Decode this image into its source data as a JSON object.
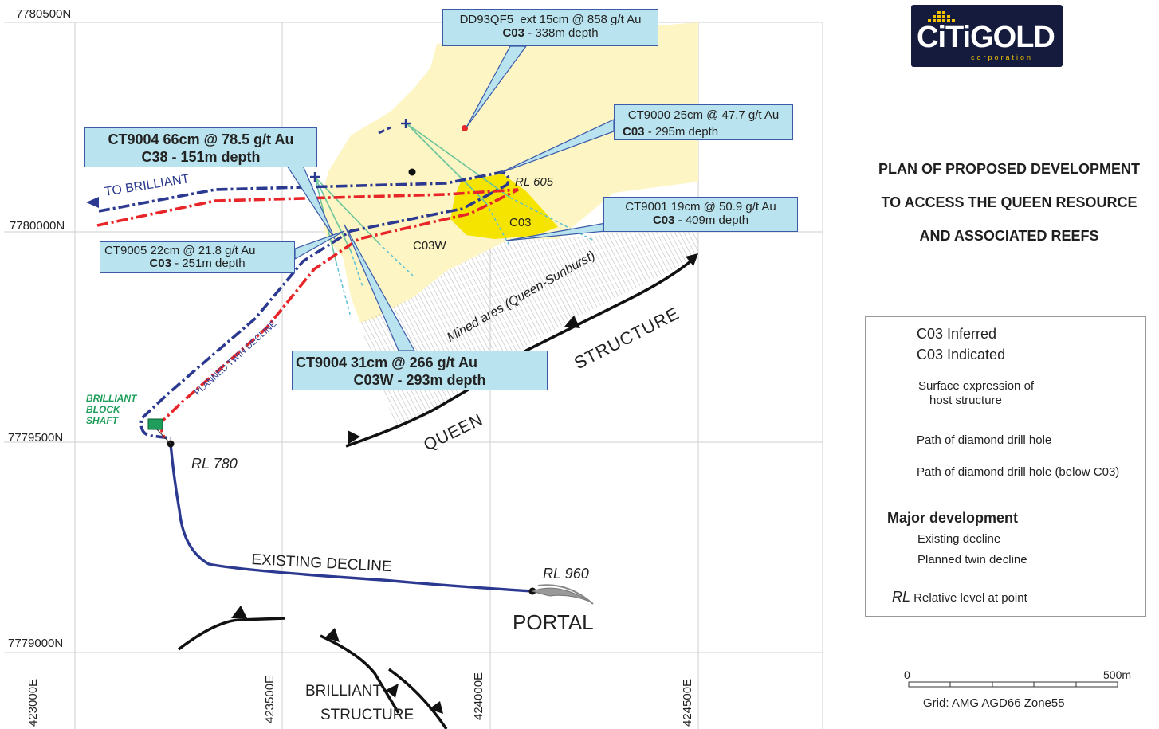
{
  "logo": {
    "name": "CiTiGOLD",
    "sub": "corporation"
  },
  "title": {
    "line1": "PLAN OF PROPOSED DEVELOPMENT",
    "line2": "TO ACCESS THE QUEEN RESOURCE",
    "line3": "AND ASSOCIATED REEFS"
  },
  "grid": {
    "northings": [
      "7780500N",
      "7780000N",
      "7779500N",
      "7779000N"
    ],
    "eastings": [
      "423000E",
      "423500E",
      "424000E",
      "424500E"
    ]
  },
  "callouts": {
    "dd93qf5": {
      "line1": "DD93QF5_ext  15cm @ 858 g/t  Au",
      "line2a": "C03",
      "line2b": " - 338m depth"
    },
    "ct9004a": {
      "line1": "CT9004  66cm @ 78.5 g/t Au",
      "line2": "C38 - 151m depth"
    },
    "ct9000": {
      "line1": "CT9000 25cm @ 47.7 g/t Au",
      "line2a": "C03",
      "line2b": " - 295m depth"
    },
    "ct9001": {
      "line1": "CT9001  19cm @ 50.9 g/t Au",
      "line2a": "C03",
      "line2b": " - 409m depth"
    },
    "ct9005": {
      "line1": "CT9005  22cm @ 21.8 g/t Au",
      "line2a": "C03",
      "line2b": " - 251m depth"
    },
    "ct9004b": {
      "line1": "CT9004  31cm @ 266 g/t Au",
      "line2": "C03W - 293m depth"
    }
  },
  "map_labels": {
    "to_brilliant": "TO BRILLIANT",
    "rl605": "RL 605",
    "c03": "C03",
    "c03w": "C03W",
    "mined": "Mined ares (Queen-Sunburst)",
    "structure": "STRUCTURE",
    "queen": "QUEEN",
    "planned_twin": "PLANNED TWIN DECLINE",
    "shaft_1": "BRILLIANT",
    "shaft_2": "BLOCK",
    "shaft_3": "SHAFT",
    "rl780": "RL 780",
    "existing_decline": "EXISTING DECLINE",
    "rl960": "RL 960",
    "portal": "PORTAL",
    "brilliant": "BRILLIANT",
    "brilliant_structure": "STRUCTURE"
  },
  "legend": {
    "inferred": "C03 Inferred",
    "indicated": "C03 Indicated",
    "surface_1": "Surface expression of",
    "surface_2": "host structure",
    "drill": "Path of diamond drill hole",
    "drill_below": "Path of diamond drill hole (below C03)",
    "major": "Major development",
    "existing": "Existing decline",
    "planned": "Planned twin decline",
    "rl_prefix": "RL",
    "rl_text": " Relative level at  point"
  },
  "scale": {
    "zero": "0",
    "max": "500m",
    "grid": "Grid: AMG AGD66 Zone55"
  },
  "colors": {
    "inferred": "#fdf5c4",
    "indicated": "#f5e400",
    "existing_decline": "#2b3990",
    "planned_red": "#e8262a",
    "drill": "#6cc49a",
    "drill_below": "#5fc3d4",
    "callout_bg": "#b9e3ee",
    "logo_gold": "#f2c200"
  }
}
